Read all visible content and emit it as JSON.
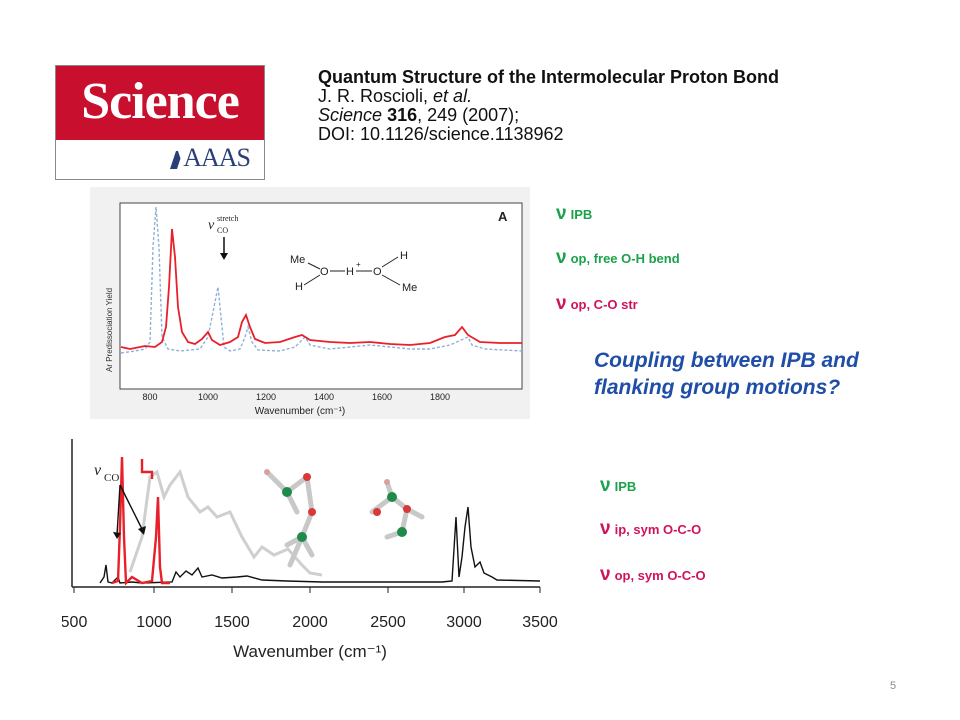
{
  "logo": {
    "word": "Science",
    "org": "AAAS"
  },
  "citation": {
    "title": "Quantum Structure of the Intermolecular Proton Bond",
    "authors": "J. R. Roscioli,",
    "authors_etal": "et al.",
    "journal": "Science",
    "volume": "316",
    "pages_year": ", 249 (2007);",
    "doi": "DOI: 10.1126/science.1138962"
  },
  "spectrum_a": {
    "panel_label": "A",
    "ylabel": "Ar Predissociation Yield",
    "xlabel": "Wavenumber (cm⁻¹)",
    "xticks": [
      "800",
      "1000",
      "1200",
      "1400",
      "1600",
      "1800"
    ],
    "annotation_symbol": "ν",
    "annotation_sup": "stretch",
    "annotation_sub": "CO",
    "molecule": {
      "me1": "Me",
      "h1": "H",
      "o1": "O",
      "h_center": "H",
      "plus": "+",
      "o2": "O",
      "h2": "H",
      "me2": "Me"
    }
  },
  "spectrum_b": {
    "xlabel": "Wavenumber (cm⁻¹)",
    "xticks": [
      "500",
      "1000",
      "1500",
      "2000",
      "2500",
      "3000",
      "3500"
    ],
    "annotation_symbol": "ν",
    "annotation_sub": "CO"
  },
  "modes_top": [
    {
      "nu": "ν",
      "text": "IPB",
      "color": "#1aa24a"
    },
    {
      "nu": "ν",
      "text": "op, free O-H bend",
      "color": "#1aa24a"
    },
    {
      "nu": "ν",
      "text": "op, C-O str",
      "color": "#d0125c"
    }
  ],
  "question": "Coupling  between IPB and flanking group motions?",
  "modes_bottom": [
    {
      "nu": "ν",
      "text": "IPB",
      "color": "#1aa24a"
    },
    {
      "nu": "ν",
      "text": "ip, sym O-C-O",
      "color": "#d0125c"
    },
    {
      "nu": "ν",
      "text": "op, sym O-C-O",
      "color": "#d0125c"
    }
  ],
  "page_number": "5",
  "colors": {
    "red_trace": "#e8202a",
    "blue_dashed": "#8fb1d6",
    "gray_trace": "#cfcfcf",
    "green_label": "#1aa24a",
    "pink_label": "#d0125c",
    "question": "#1f4ea8"
  }
}
